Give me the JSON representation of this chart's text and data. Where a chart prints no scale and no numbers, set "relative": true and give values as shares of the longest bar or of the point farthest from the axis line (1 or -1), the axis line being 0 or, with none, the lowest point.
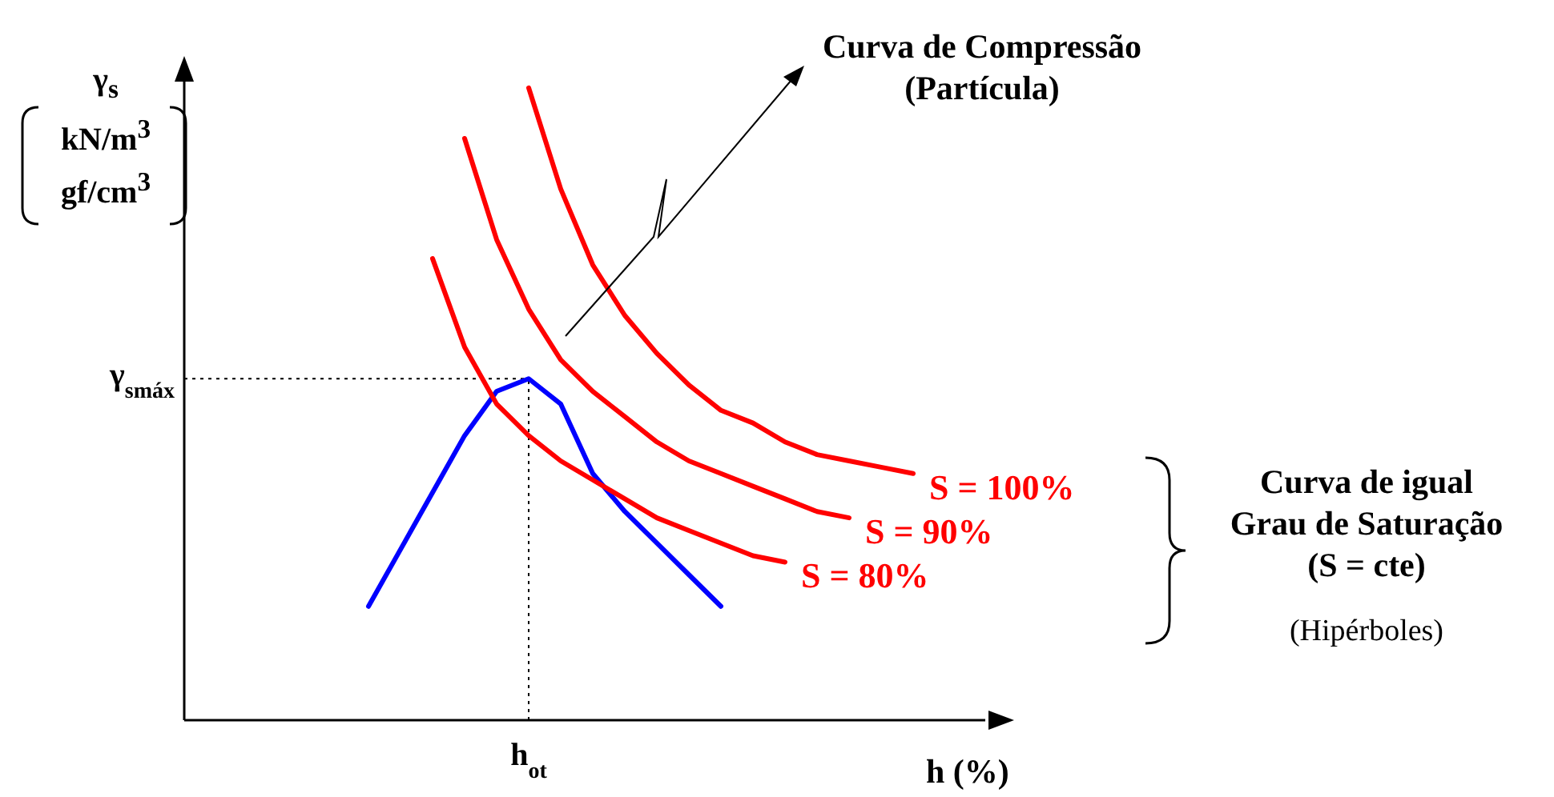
{
  "chart_data": {
    "type": "line",
    "relative": true,
    "xlabel": "h (%)",
    "categories": [
      null,
      null,
      null,
      null,
      null,
      null,
      null,
      null,
      null,
      null,
      null,
      null,
      null,
      null,
      null,
      null,
      null,
      null,
      null
    ],
    "series": [
      {
        "color": "#0000ff",
        "values": [
          0.18,
          0.27,
          0.36,
          0.45,
          0.52,
          0.54,
          0.5,
          0.39,
          0.33,
          0.28,
          0.23,
          0.18,
          null,
          null,
          null,
          null,
          null,
          null,
          null
        ]
      },
      {
        "name": "S = 80%",
        "color": "#ff0000",
        "values": [
          null,
          null,
          0.73,
          0.59,
          0.5,
          0.45,
          0.41,
          0.38,
          0.35,
          0.32,
          0.3,
          0.28,
          0.26,
          0.25,
          null,
          null,
          null,
          null,
          null
        ]
      },
      {
        "name": "S = 90%",
        "color": "#ff0000",
        "values": [
          null,
          null,
          null,
          0.92,
          0.76,
          0.65,
          0.57,
          0.52,
          0.48,
          0.44,
          0.41,
          0.39,
          0.37,
          0.35,
          0.33,
          0.32,
          null,
          null,
          null
        ]
      },
      {
        "name": "S = 100%",
        "color": "#ff0000",
        "values": [
          null,
          null,
          null,
          null,
          null,
          1,
          0.84,
          0.72,
          0.64,
          0.58,
          0.53,
          0.49,
          0.47,
          0.44,
          0.42,
          0.41,
          0.4,
          0.39,
          null
        ]
      }
    ],
    "ref_lines": [
      {
        "axis": "y",
        "value": 0.54,
        "label": "γ$_{smáx}$",
        "line_style": "dotted"
      }
    ],
    "annotations": [
      "Curva de Compressão\n(Partícula)",
      "Curva de igual\nGrau de Saturação\n(S = cte)",
      "(Hipérboles)",
      "γ$_{s}$\nkN/m$^{3}$\ngf/cm$^{3}$",
      "h$_{ot}$"
    ],
    "legend": false,
    "grid": false,
    "marker": "none",
    "line_style": "solid"
  }
}
